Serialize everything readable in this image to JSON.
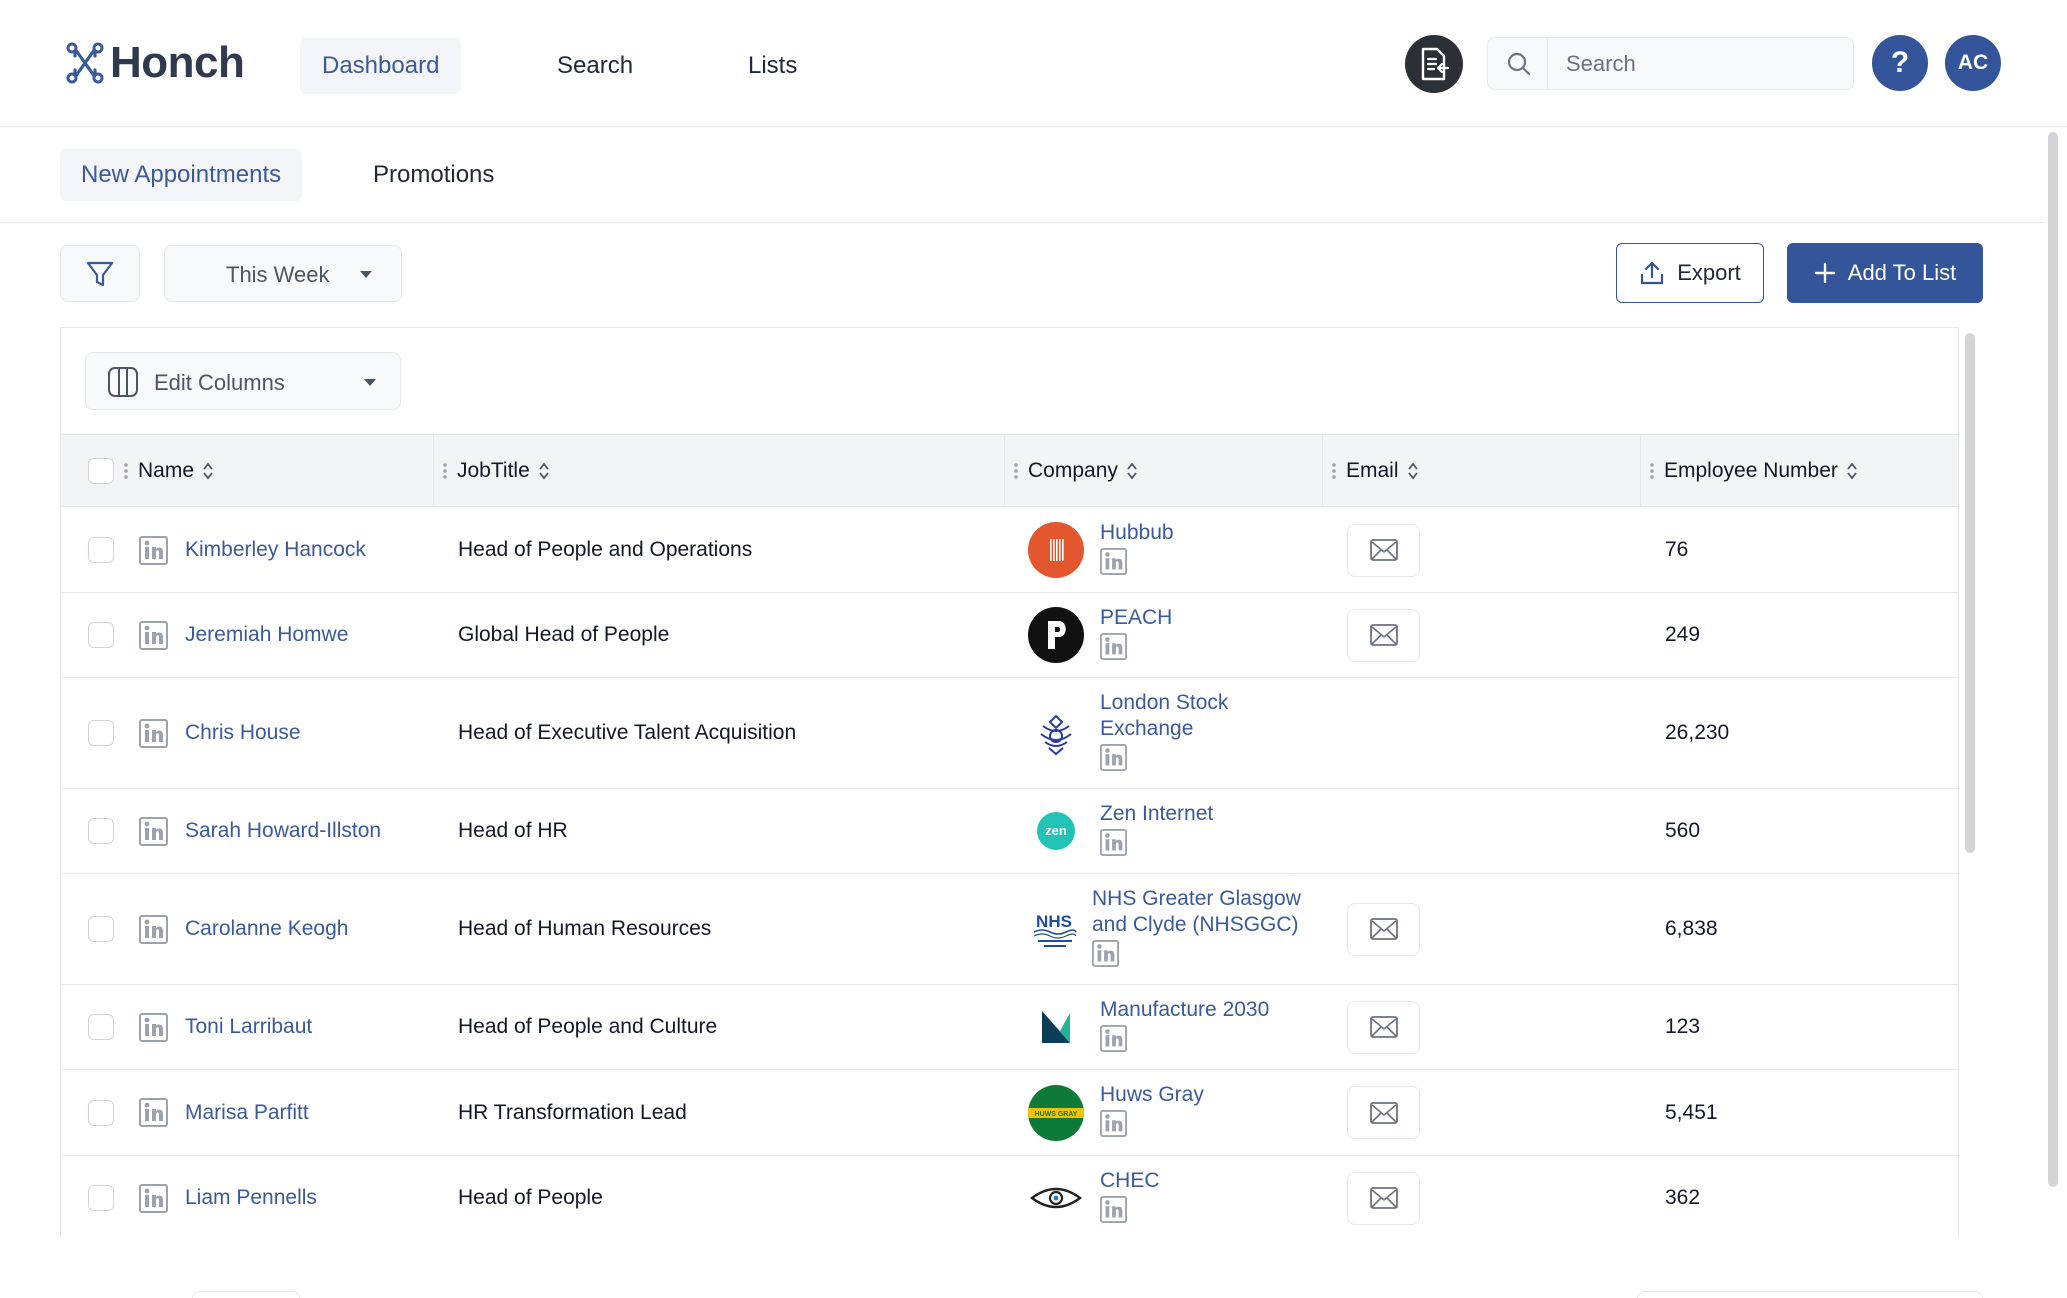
{
  "header": {
    "brand": "Honch",
    "nav": [
      {
        "label": "Dashboard",
        "active": true
      },
      {
        "label": "Search",
        "active": false
      },
      {
        "label": "Lists",
        "active": false
      }
    ],
    "doc_icon": "document-arrow-icon",
    "search": {
      "placeholder": "Search",
      "value": ""
    },
    "help_label": "?",
    "avatar_initials": "AC"
  },
  "tabs": [
    {
      "label": "New Appointments",
      "active": true
    },
    {
      "label": "Promotions",
      "active": false
    }
  ],
  "toolbar": {
    "period": "This Week",
    "export_label": "Export",
    "add_label": "Add To List"
  },
  "table": {
    "edit_columns_label": "Edit Columns",
    "columns": [
      "Name",
      "JobTitle",
      "Company",
      "Email",
      "Employee Number"
    ],
    "rows": [
      {
        "name": "Kimberley Hancock",
        "title": "Head of People and Operations",
        "company": "Hubbub",
        "logo": "hubbub-logo",
        "has_email": true,
        "employees": "76"
      },
      {
        "name": "Jeremiah Homwe",
        "title": "Global Head of People",
        "company": "PEACH",
        "logo": "peach-logo",
        "has_email": true,
        "employees": "249"
      },
      {
        "name": "Chris House",
        "title": "Head of Executive Talent Acquisition",
        "company": "London Stock Exchange",
        "logo": "lse-crest-logo",
        "has_email": false,
        "employees": "26,230"
      },
      {
        "name": "Sarah Howard-Illston",
        "title": "Head of HR",
        "company": "Zen Internet",
        "logo": "zen-logo",
        "has_email": false,
        "employees": "560"
      },
      {
        "name": "Carolanne Keogh",
        "title": "Head of Human Resources",
        "company": "NHS Greater Glasgow and Clyde (NHSGGC)",
        "logo": "nhs-logo",
        "has_email": true,
        "employees": "6,838"
      },
      {
        "name": "Toni Larribaut",
        "title": "Head of People and Culture",
        "company": "Manufacture 2030",
        "logo": "manufacture-logo",
        "has_email": true,
        "employees": "123"
      },
      {
        "name": "Marisa Parfitt",
        "title": "HR Transformation Lead",
        "company": "Huws Gray",
        "logo": "huws-gray-logo",
        "has_email": true,
        "employees": "5,451"
      },
      {
        "name": "Liam Pennells",
        "title": "Head of People",
        "company": "CHEC",
        "logo": "chec-eye-logo",
        "has_email": true,
        "employees": "362"
      }
    ]
  },
  "colors": {
    "primary": "#34559a",
    "link": "#3b5a9a",
    "linkedin_gray": "#9ca3af"
  }
}
